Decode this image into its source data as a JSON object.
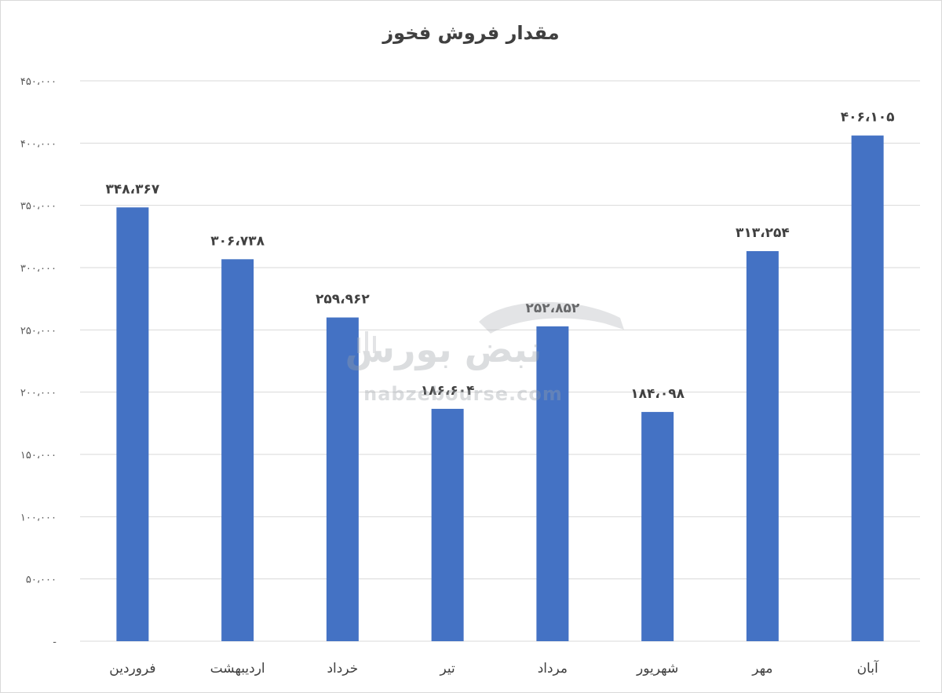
{
  "chart_data": {
    "type": "bar",
    "title": "مقدار فروش فخوز",
    "categories": [
      "فروردین",
      "اردیبهشت",
      "خرداد",
      "تیر",
      "مرداد",
      "شهریور",
      "مهر",
      "آبان"
    ],
    "values": [
      348367,
      306738,
      259962,
      186604,
      252852,
      184098,
      313254,
      406105
    ],
    "value_labels": [
      "۳۴۸،۳۶۷",
      "۳۰۶،۷۳۸",
      "۲۵۹،۹۶۲",
      "۱۸۶،۶۰۴",
      "۲۵۲،۸۵۲",
      "۱۸۴،۰۹۸",
      "۳۱۳،۲۵۴",
      "۴۰۶،۱۰۵"
    ],
    "ylim": [
      0,
      450000
    ],
    "yticks": [
      0,
      50000,
      100000,
      150000,
      200000,
      250000,
      300000,
      350000,
      400000,
      450000
    ],
    "ytick_labels": [
      "-",
      "۵۰،۰۰۰",
      "۱۰۰،۰۰۰",
      "۱۵۰،۰۰۰",
      "۲۰۰،۰۰۰",
      "۲۵۰،۰۰۰",
      "۳۰۰،۰۰۰",
      "۳۵۰،۰۰۰",
      "۴۰۰،۰۰۰",
      "۴۵۰،۰۰۰"
    ],
    "xlabel": "",
    "ylabel": "",
    "grid": true,
    "legend": "none",
    "bar_color": "#4472c4",
    "grid_color": "#d9d9d9"
  },
  "watermark": {
    "brand": "نبض بورس",
    "url": "nabzebourse.com"
  }
}
